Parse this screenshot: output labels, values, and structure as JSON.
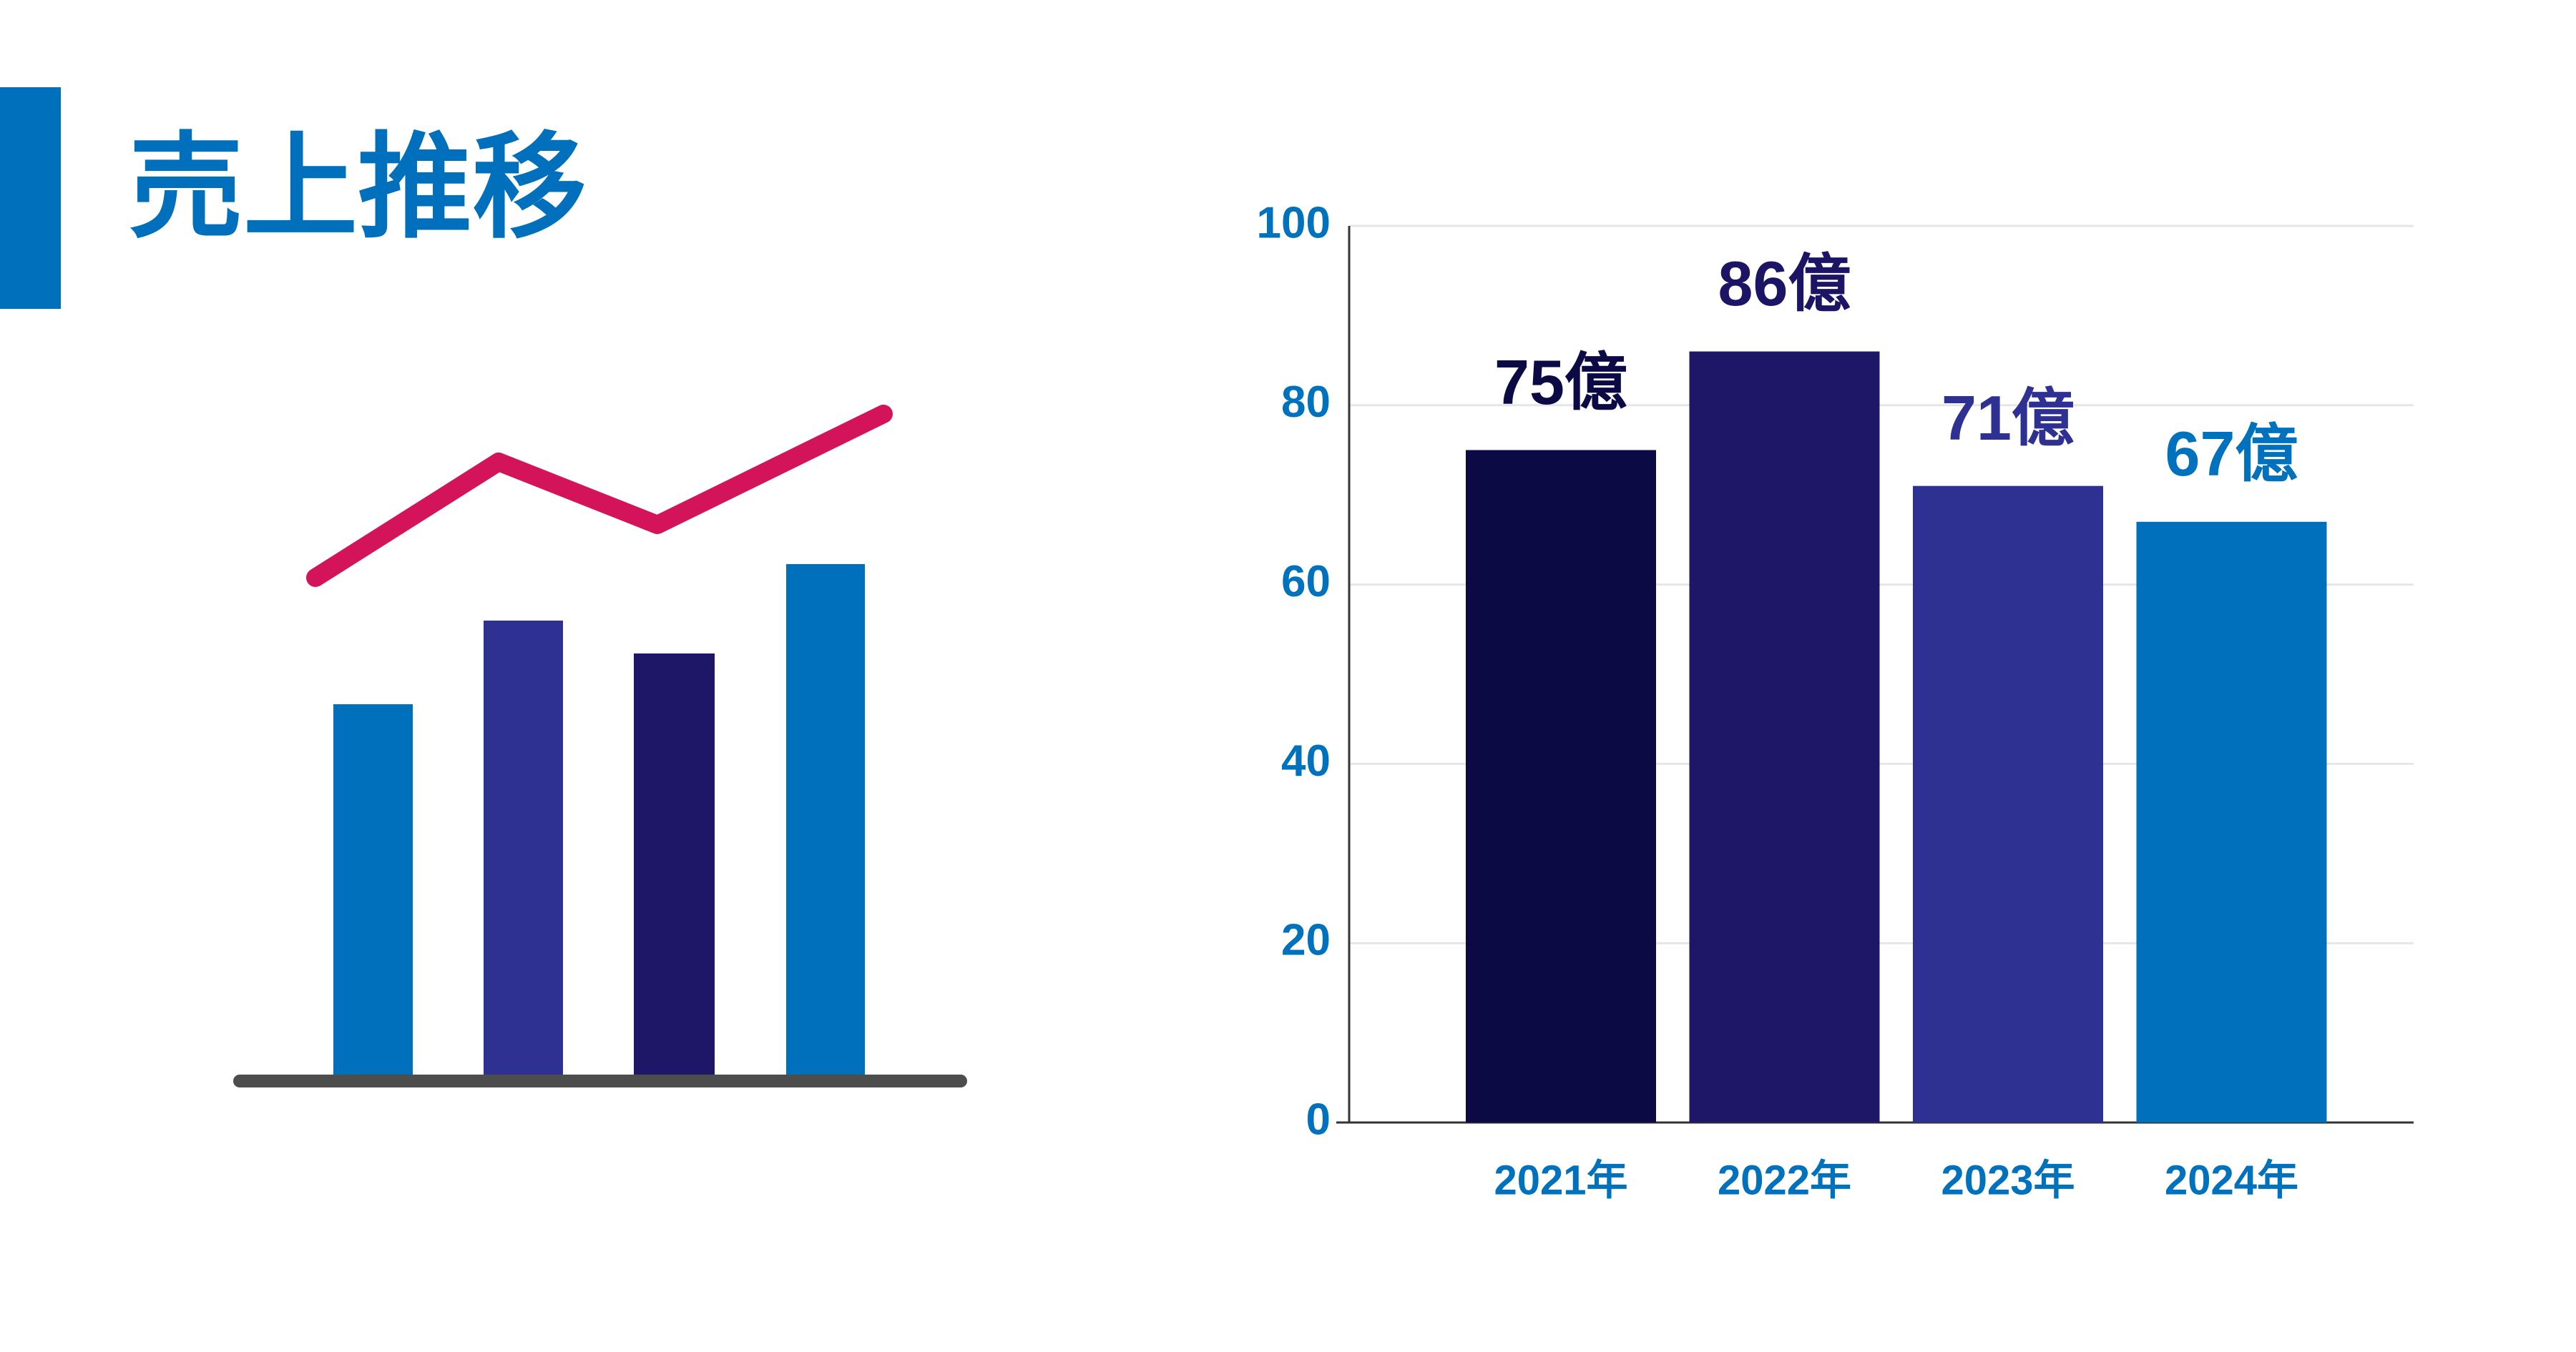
{
  "chart_data": {
    "type": "bar",
    "title": "売上推移",
    "categories": [
      "2021年",
      "2022年",
      "2023年",
      "2024年"
    ],
    "values": [
      75,
      86,
      71,
      67
    ],
    "value_labels": [
      "75億",
      "86億",
      "71億",
      "67億"
    ],
    "colors": [
      "#0b0a45",
      "#1e1666",
      "#2e3192",
      "#0070bc"
    ],
    "label_colors": [
      "#0b0a45",
      "#1c1464",
      "#2e3192",
      "#0071bc"
    ],
    "ylim": [
      0,
      100
    ],
    "yticks": [
      0,
      20,
      40,
      60,
      80,
      100
    ],
    "grid": true
  }
}
